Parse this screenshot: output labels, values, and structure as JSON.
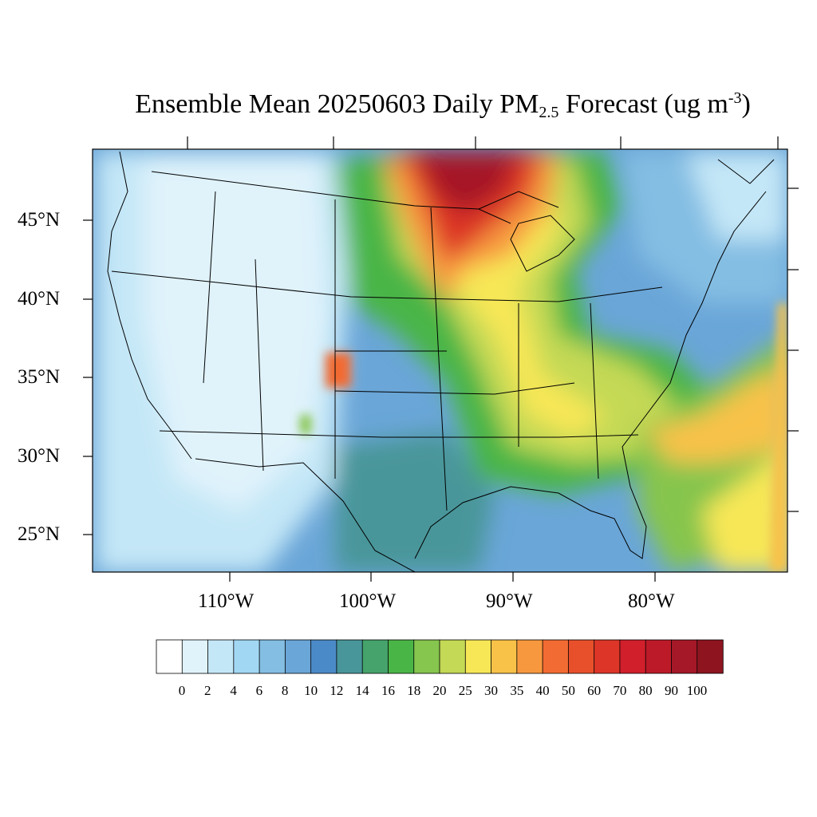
{
  "title": {
    "main": "Ensemble Mean 20250603 Daily PM",
    "sub": "2.5",
    "rest": " Forecast (ug m",
    "sup": "-3",
    "close": ")"
  },
  "lat_labels": [
    "45°N",
    "40°N",
    "35°N",
    "30°N",
    "25°N"
  ],
  "lon_labels": [
    "110°W",
    "100°W",
    "90°W",
    "80°W"
  ],
  "colorbar": {
    "labels": [
      "0",
      "2",
      "4",
      "6",
      "8",
      "10",
      "12",
      "14",
      "16",
      "18",
      "20",
      "25",
      "30",
      "35",
      "40",
      "50",
      "60",
      "70",
      "80",
      "90",
      "100"
    ],
    "colors": [
      "#ffffff",
      "#e0f3fb",
      "#c4e7f7",
      "#a2d7f3",
      "#84bee3",
      "#6aa6d8",
      "#4b8ac8",
      "#48969a",
      "#45a36b",
      "#4ab547",
      "#86c54e",
      "#c4d955",
      "#f7e757",
      "#f8c249",
      "#f7983f",
      "#f26b32",
      "#e8502b",
      "#dd3528",
      "#d11f2b",
      "#bc1a28",
      "#a51827",
      "#8e1520"
    ]
  },
  "map": {
    "field_colors": {
      "clean": "#e0f3fb",
      "low": "#c4e7f7",
      "mid": "#84bee3",
      "moderate": "#4b8ac8",
      "green": "#4ab547",
      "yellow": "#f7e757",
      "orange": "#f7983f",
      "red": "#dd3528",
      "dark": "#a51827"
    }
  }
}
